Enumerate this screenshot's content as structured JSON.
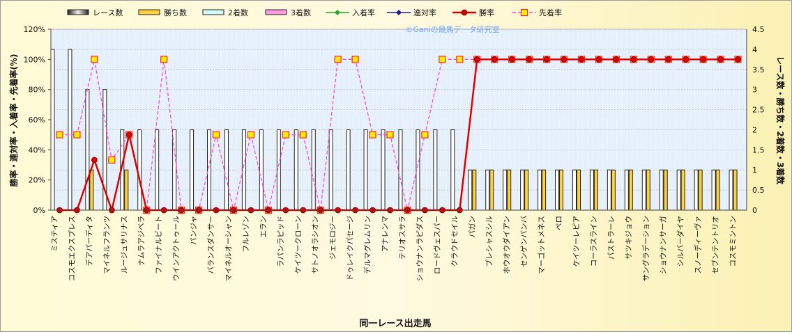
{
  "chart_data": {
    "type": "bar",
    "title": "",
    "watermark": "©Ganiの競馬データ研究室",
    "xlabel": "同一レース出走馬",
    "ylabel_left": "勝率・連対率・入着率・先着率(%)",
    "ylabel_right": "レース数・勝ち数・2着数・3着数",
    "y_left_range": [
      0,
      120
    ],
    "y_left_ticks": [
      "0%",
      "20%",
      "40%",
      "60%",
      "80%",
      "100%",
      "120%"
    ],
    "y_right_range": [
      0,
      4.5
    ],
    "y_right_ticks": [
      "0",
      "0.5",
      "1",
      "1.5",
      "2",
      "2.5",
      "3",
      "3.5",
      "4",
      "4.5"
    ],
    "grid": true,
    "legend_position": "top",
    "legend": {
      "races": "レース数",
      "wins": "勝ち数",
      "second": "2着数",
      "third": "3着数",
      "place_rate": "入着率",
      "top2_rate": "連対率",
      "win_rate": "勝率",
      "ahead_rate": "先着率"
    },
    "colors": {
      "races": "#ffffff",
      "wins": "#ffd23a",
      "second": "#d4fbfb",
      "third": "#ff9ce0",
      "place_rate": "#22aa22",
      "top2_rate": "#1a1aa0",
      "win_rate": "#dd0000",
      "ahead_rate": "#ff44dd",
      "plot_bg": "#e6f0fb"
    },
    "categories": [
      "ミスティア",
      "コスモエクスプレス",
      "デアパーディタ",
      "マイネルフランツ",
      "ルージュサリナス",
      "ナムラアジベラ",
      "ファイナルビート",
      "ウインアクトゥール",
      "パンジャ",
      "バランスダンサー",
      "マイネルオーシャン",
      "フルレゾン",
      "エラン",
      "ラパンラピッド",
      "ケイツークローン",
      "サトノオラシオン",
      "ジェモロジー",
      "ドゥレイクパセージ",
      "デルマグレムリン",
      "アナレンマ",
      "テリオスサラ",
      "ショウナンラピダス",
      "ロードヴェスパー",
      "クラウドセイル",
      "パガン",
      "プレシャスシル",
      "ホウオウダイアン",
      "センゲンバンバ",
      "マーゴットメネス",
      "ペロ",
      "ケイツーレピア",
      "コーラスライン",
      "パストラーレ",
      "サツキジョウ",
      "サングラデーション",
      "ショウナンサーガ",
      "シルバーダイヤ",
      "スノーディーヴァ",
      "セブンテントリオ",
      "コスモミントン"
    ],
    "series": [
      {
        "name": "レース数",
        "axis": "right",
        "values": [
          4,
          4,
          3,
          3,
          2,
          2,
          2,
          2,
          2,
          2,
          2,
          2,
          2,
          2,
          2,
          2,
          2,
          2,
          2,
          2,
          2,
          2,
          2,
          2,
          1,
          1,
          1,
          1,
          1,
          1,
          1,
          1,
          1,
          1,
          1,
          1,
          1,
          1,
          1,
          1
        ]
      },
      {
        "name": "勝ち数",
        "axis": "right",
        "values": [
          0,
          0,
          1,
          0,
          1,
          0,
          0,
          0,
          0,
          0,
          0,
          0,
          0,
          0,
          0,
          0,
          0,
          0,
          0,
          0,
          0,
          0,
          0,
          0,
          1,
          1,
          1,
          1,
          1,
          1,
          1,
          1,
          1,
          1,
          1,
          1,
          1,
          1,
          1,
          1
        ]
      },
      {
        "name": "2着数",
        "axis": "right",
        "values": [
          0,
          0,
          0,
          0,
          0,
          0,
          0,
          0,
          0,
          0,
          0,
          0,
          0,
          0,
          0,
          0,
          0,
          0,
          0,
          0,
          0,
          0,
          0,
          0,
          0,
          0,
          0,
          0,
          0,
          0,
          0,
          0,
          0,
          0,
          0,
          0,
          0,
          0,
          0,
          0
        ]
      },
      {
        "name": "3着数",
        "axis": "right",
        "values": [
          0,
          0,
          0,
          0,
          0,
          0,
          0,
          0,
          0,
          0,
          0,
          0,
          0,
          0,
          0,
          0,
          0,
          0,
          0,
          0,
          0,
          0,
          0,
          0,
          0,
          0,
          0,
          0,
          0,
          0,
          0,
          0,
          0,
          0,
          0,
          0,
          0,
          0,
          0,
          0
        ]
      },
      {
        "name": "勝率",
        "axis": "left",
        "values": [
          0,
          0,
          33.3,
          0,
          50,
          0,
          0,
          0,
          0,
          0,
          0,
          0,
          0,
          0,
          0,
          0,
          0,
          0,
          0,
          0,
          0,
          0,
          0,
          0,
          100,
          100,
          100,
          100,
          100,
          100,
          100,
          100,
          100,
          100,
          100,
          100,
          100,
          100,
          100,
          100
        ]
      },
      {
        "name": "先着率",
        "axis": "left",
        "values": [
          50,
          50,
          100,
          33.3,
          50,
          0,
          100,
          0,
          0,
          50,
          0,
          50,
          0,
          50,
          50,
          0,
          100,
          100,
          50,
          50,
          0,
          50,
          100,
          100,
          100,
          100,
          100,
          100,
          100,
          100,
          100,
          100,
          100,
          100,
          100,
          100,
          100,
          100,
          100,
          100
        ]
      }
    ]
  }
}
